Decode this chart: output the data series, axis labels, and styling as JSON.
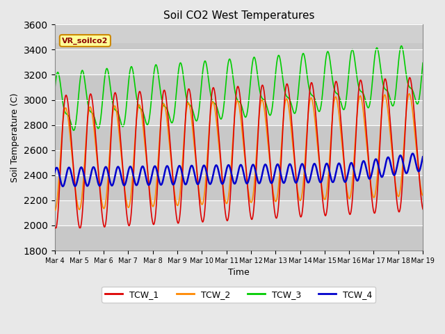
{
  "title": "Soil CO2 West Temperatures",
  "xlabel": "Time",
  "ylabel": "Soil Temperature (C)",
  "ylim": [
    1800,
    3450
  ],
  "annotation_text": "VR_soilco2",
  "colors": {
    "TCW_1": "#dd0000",
    "TCW_2": "#ff8800",
    "TCW_3": "#00cc00",
    "TCW_4": "#0000cc"
  },
  "xtick_labels": [
    "Mar 4",
    "Mar 5",
    "Mar 6",
    "Mar 7",
    "Mar 8",
    "Mar 9",
    "Mar 10",
    "Mar 11",
    "Mar 12",
    "Mar 13",
    "Mar 14",
    "Mar 15",
    "Mar 16",
    "Mar 17",
    "Mar 18",
    "Mar 19"
  ],
  "fig_width": 6.4,
  "fig_height": 4.8,
  "dpi": 100
}
